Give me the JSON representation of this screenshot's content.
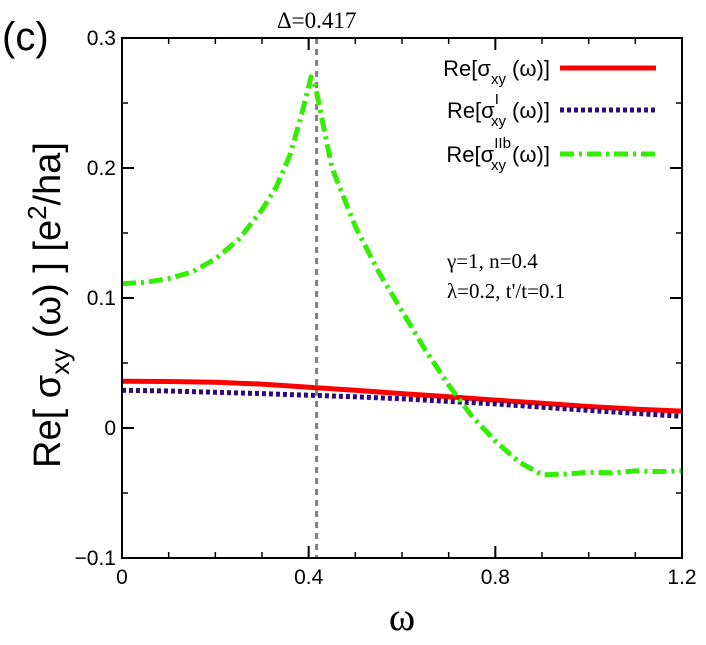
{
  "chart_data": {
    "type": "line",
    "panel_label": "(c)",
    "ylabel": "Re[ σxy (ω) ]  [e²/ha]",
    "ylabel_parts": {
      "pre": "Re[ σ",
      "sub": "xy",
      "mid": " (ω) ]  [e",
      "sup": "2",
      "post": "/ha]"
    },
    "xlabel": "ω",
    "xlim": [
      0,
      1.2
    ],
    "ylim": [
      -0.1,
      0.3
    ],
    "xticks": [
      {
        "value": 0,
        "label": "0"
      },
      {
        "value": 0.4,
        "label": "0.4"
      },
      {
        "value": 0.8,
        "label": "0.8"
      },
      {
        "value": 1.2,
        "label": "1.2"
      }
    ],
    "yticks": [
      {
        "value": -0.1,
        "label": "−0.1"
      },
      {
        "value": 0,
        "label": "0"
      },
      {
        "value": 0.1,
        "label": "0.1"
      },
      {
        "value": 0.2,
        "label": "0.2"
      },
      {
        "value": 0.3,
        "label": "0.3"
      }
    ],
    "vline": {
      "x": 0.417,
      "label": "Δ=0.417",
      "color": "#808080"
    },
    "annotations": [
      "γ=1, n=0.4",
      "λ=0.2, t'/t=0.1"
    ],
    "legend_position": "top-right",
    "series": [
      {
        "name": "Re[σxy (ω)]",
        "legend": {
          "pre": "Re[σ",
          "sub": "xy",
          "sup": "",
          "post": " (ω)]"
        },
        "color": "#ff0000",
        "style": "solid",
        "points": [
          [
            0,
            0.036
          ],
          [
            0.1,
            0.0358
          ],
          [
            0.2,
            0.0352
          ],
          [
            0.3,
            0.0338
          ],
          [
            0.417,
            0.031
          ],
          [
            0.5,
            0.029
          ],
          [
            0.6,
            0.0265
          ],
          [
            0.7,
            0.024
          ],
          [
            0.8,
            0.0215
          ],
          [
            0.9,
            0.019
          ],
          [
            1.0,
            0.0165
          ],
          [
            1.1,
            0.0145
          ],
          [
            1.2,
            0.013
          ]
        ]
      },
      {
        "name": "Re[σIxy (ω)]",
        "legend": {
          "pre": "Re[σ",
          "sub": "xy",
          "sup": "I",
          "post": " (ω)]"
        },
        "color": "#2e0a7a",
        "style": "dotted",
        "points": [
          [
            0,
            0.029
          ],
          [
            0.1,
            0.0285
          ],
          [
            0.2,
            0.0275
          ],
          [
            0.3,
            0.0265
          ],
          [
            0.417,
            0.025
          ],
          [
            0.5,
            0.024
          ],
          [
            0.6,
            0.0225
          ],
          [
            0.7,
            0.0205
          ],
          [
            0.8,
            0.0185
          ],
          [
            0.9,
            0.016
          ],
          [
            1.0,
            0.0135
          ],
          [
            1.1,
            0.0112
          ],
          [
            1.2,
            0.009
          ]
        ]
      },
      {
        "name": "Re[σIIbxy (ω)]",
        "legend": {
          "pre": "Re[σ",
          "sub": "xy",
          "sup": "IIb",
          "post": " (ω)]"
        },
        "color": "#33ee00",
        "style": "dashdot",
        "points": [
          [
            0,
            0.111
          ],
          [
            0.05,
            0.112
          ],
          [
            0.1,
            0.115
          ],
          [
            0.15,
            0.12
          ],
          [
            0.2,
            0.13
          ],
          [
            0.25,
            0.145
          ],
          [
            0.3,
            0.168
          ],
          [
            0.33,
            0.185
          ],
          [
            0.36,
            0.21
          ],
          [
            0.38,
            0.235
          ],
          [
            0.395,
            0.255
          ],
          [
            0.405,
            0.27
          ],
          [
            0.415,
            0.262
          ],
          [
            0.43,
            0.235
          ],
          [
            0.45,
            0.2
          ],
          [
            0.5,
            0.155
          ],
          [
            0.55,
            0.12
          ],
          [
            0.6,
            0.09
          ],
          [
            0.65,
            0.06
          ],
          [
            0.7,
            0.033
          ],
          [
            0.75,
            0.009
          ],
          [
            0.8,
            -0.01
          ],
          [
            0.85,
            -0.026
          ],
          [
            0.9,
            -0.036
          ],
          [
            0.95,
            -0.0355
          ],
          [
            1.0,
            -0.034
          ],
          [
            1.05,
            -0.0345
          ],
          [
            1.1,
            -0.033
          ],
          [
            1.15,
            -0.0335
          ],
          [
            1.2,
            -0.033
          ]
        ]
      }
    ]
  }
}
